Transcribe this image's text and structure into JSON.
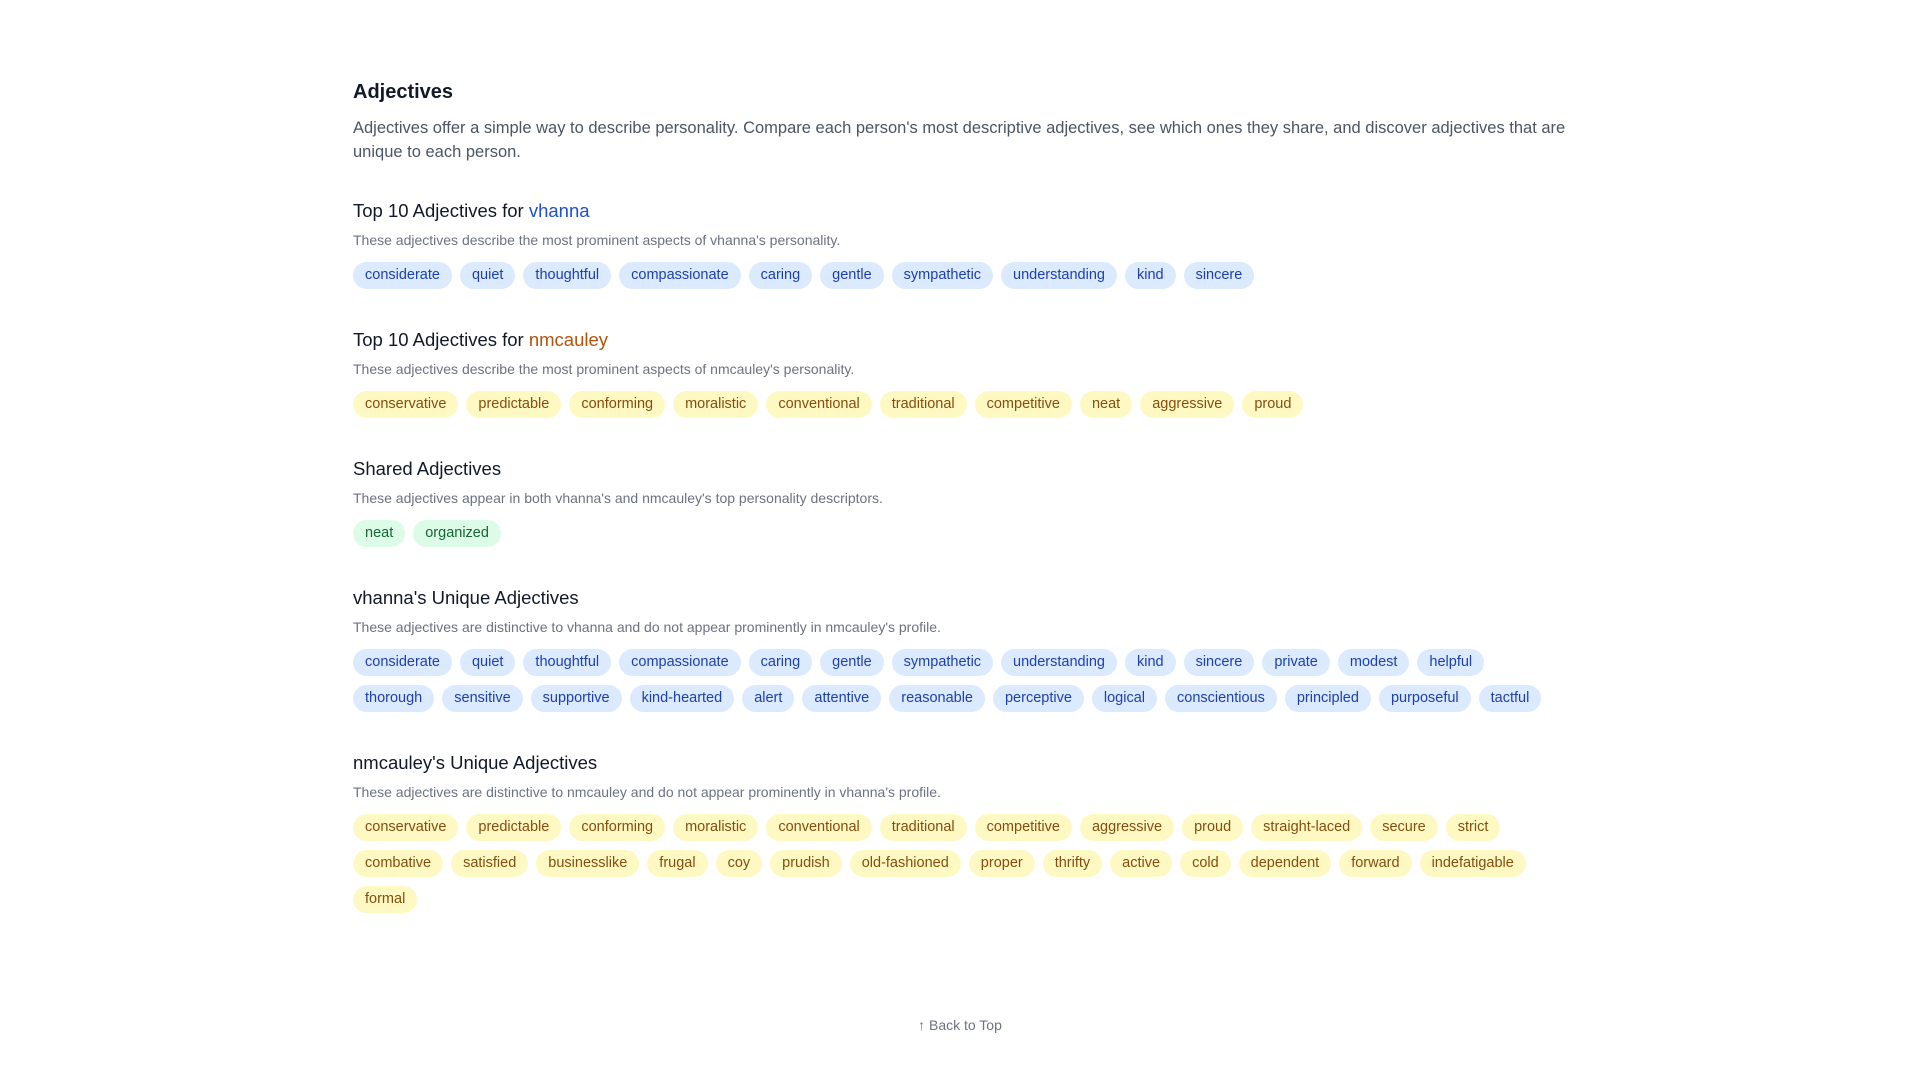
{
  "header": {
    "title": "Adjectives",
    "intro": "Adjectives offer a simple way to describe personality. Compare each person's most descriptive adjectives, see which ones they share, and discover adjectives that are unique to each person."
  },
  "colors": {
    "blue_chip_bg": "#dbeafe",
    "yellow_chip_bg": "#fef9c3",
    "green_chip_bg": "#dcfce7",
    "vhanna": "#1d4ed8",
    "nmcauley": "#b45309"
  },
  "sections": [
    {
      "title_prefix": "Top 10 Adjectives for ",
      "title_user": "vhanna",
      "user_color": "blue",
      "description": "These adjectives describe the most prominent aspects of vhanna's personality.",
      "chip_color": "blue",
      "chips": [
        "considerate",
        "quiet",
        "thoughtful",
        "compassionate",
        "caring",
        "gentle",
        "sympathetic",
        "understanding",
        "kind",
        "sincere"
      ]
    },
    {
      "title_prefix": "Top 10 Adjectives for ",
      "title_user": "nmcauley",
      "user_color": "amber",
      "description": "These adjectives describe the most prominent aspects of nmcauley's personality.",
      "chip_color": "yellow",
      "chips": [
        "conservative",
        "predictable",
        "conforming",
        "moralistic",
        "conventional",
        "traditional",
        "competitive",
        "neat",
        "aggressive",
        "proud"
      ]
    },
    {
      "title_prefix": "Shared Adjectives",
      "title_user": "",
      "description": "These adjectives appear in both vhanna's and nmcauley's top personality descriptors.",
      "chip_color": "green",
      "chips": [
        "neat",
        "organized"
      ]
    },
    {
      "title_prefix": "vhanna's Unique Adjectives",
      "title_user": "",
      "description": "These adjectives are distinctive to vhanna and do not appear prominently in nmcauley's profile.",
      "chip_color": "blue",
      "chips": [
        "considerate",
        "quiet",
        "thoughtful",
        "compassionate",
        "caring",
        "gentle",
        "sympathetic",
        "understanding",
        "kind",
        "sincere",
        "private",
        "modest",
        "helpful",
        "thorough",
        "sensitive",
        "supportive",
        "kind-hearted",
        "alert",
        "attentive",
        "reasonable",
        "perceptive",
        "logical",
        "conscientious",
        "principled",
        "purposeful",
        "tactful"
      ]
    },
    {
      "title_prefix": "nmcauley's Unique Adjectives",
      "title_user": "",
      "description": "These adjectives are distinctive to nmcauley and do not appear prominently in vhanna's profile.",
      "chip_color": "yellow",
      "chips": [
        "conservative",
        "predictable",
        "conforming",
        "moralistic",
        "conventional",
        "traditional",
        "competitive",
        "aggressive",
        "proud",
        "straight-laced",
        "secure",
        "strict",
        "combative",
        "satisfied",
        "businesslike",
        "frugal",
        "coy",
        "prudish",
        "old-fashioned",
        "proper",
        "thrifty",
        "active",
        "cold",
        "dependent",
        "forward",
        "indefatigable",
        "formal"
      ]
    }
  ],
  "footer": {
    "back_to_top": "↑ Back to Top",
    "arrow_icon": "arrow-up-icon"
  }
}
